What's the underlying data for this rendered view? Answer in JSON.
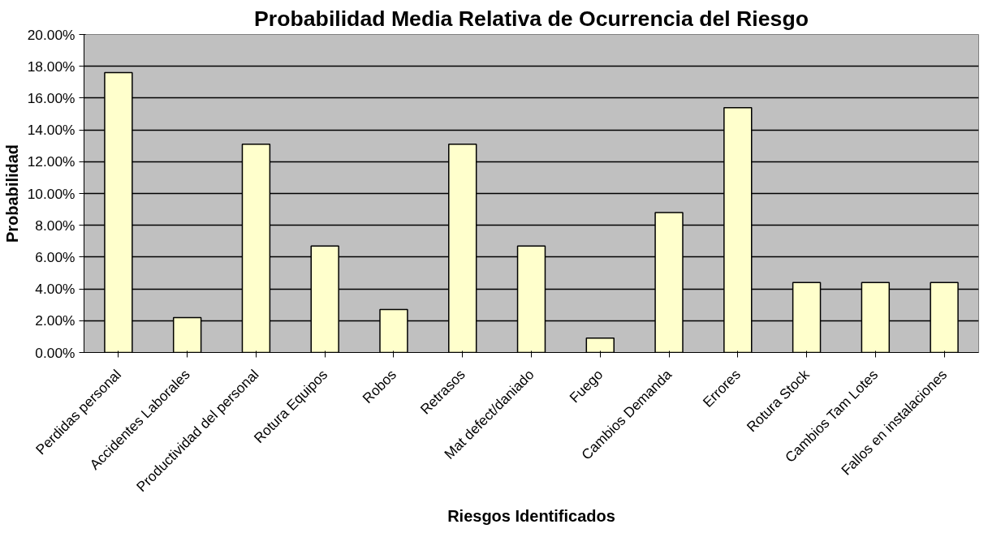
{
  "chart_data": {
    "type": "bar",
    "title": "Probabilidad Media Relativa de Ocurrencia del Riesgo",
    "xlabel": "Riesgos Identificados",
    "ylabel": "Probabilidad",
    "categories": [
      "Perdidas personal",
      "Accidentes Laborales",
      "Productividad del personal",
      "Rotura Equipos",
      "Robos",
      "Retrasos",
      "Mat defect/daniado",
      "Fuego",
      "Cambios Demanda",
      "Errores",
      "Rotura Stock",
      "Cambios Tam Lotes",
      "Fallos en instalaciones"
    ],
    "values": [
      17.6,
      2.2,
      13.1,
      6.7,
      2.7,
      13.1,
      6.7,
      0.9,
      8.8,
      15.4,
      4.4,
      4.4,
      4.4
    ],
    "color": "#ffffcc",
    "ylim": [
      0,
      20
    ],
    "yticks": [
      {
        "value": 0,
        "label": "0.00%"
      },
      {
        "value": 2,
        "label": "2.00%"
      },
      {
        "value": 4,
        "label": "4.00%"
      },
      {
        "value": 6,
        "label": "6.00%"
      },
      {
        "value": 8,
        "label": "8.00%"
      },
      {
        "value": 10,
        "label": "10.00%"
      },
      {
        "value": 12,
        "label": "12.00%"
      },
      {
        "value": 14,
        "label": "14.00%"
      },
      {
        "value": 16,
        "label": "16.00%"
      },
      {
        "value": 18,
        "label": "18.00%"
      },
      {
        "value": 20,
        "label": "20.00%"
      }
    ],
    "grid": "y"
  }
}
